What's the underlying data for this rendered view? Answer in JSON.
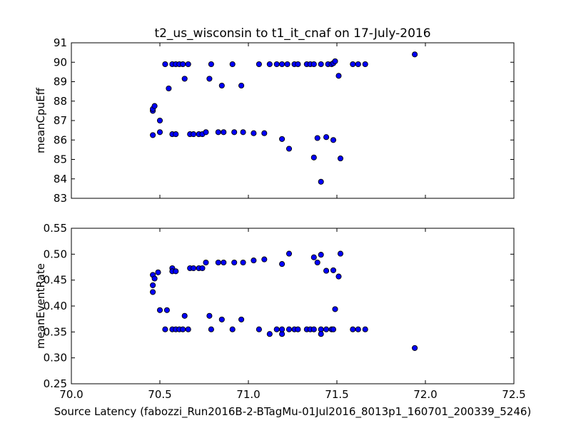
{
  "title": "t2_us_wisconsin to t1_it_cnaf on 17-July-2016",
  "xlabel": "Source Latency (fabozzi_Run2016B-2-BTagMu-01Jul2016_8013p1_160701_200339_5246)",
  "colors": {
    "marker": "#0000ff",
    "marker_edge": "#000000",
    "axes": "#000000",
    "background": "#ffffff"
  },
  "chart_data": [
    {
      "type": "scatter",
      "ylabel": "meanCpuEff",
      "xlim": [
        70.0,
        72.5
      ],
      "ylim": [
        83,
        91
      ],
      "xticks": [],
      "yticks": [
        "83",
        "84",
        "85",
        "86",
        "87",
        "88",
        "89",
        "90",
        "91"
      ],
      "grid": false,
      "points": [
        [
          70.46,
          87.5
        ],
        [
          70.46,
          87.6
        ],
        [
          70.47,
          87.75
        ],
        [
          70.46,
          86.25
        ],
        [
          70.5,
          86.4
        ],
        [
          70.5,
          87.0
        ],
        [
          70.53,
          89.9
        ],
        [
          70.55,
          88.65
        ],
        [
          70.57,
          89.9
        ],
        [
          70.59,
          89.9
        ],
        [
          70.61,
          89.9
        ],
        [
          70.63,
          89.9
        ],
        [
          70.64,
          89.15
        ],
        [
          70.66,
          89.9
        ],
        [
          70.57,
          86.3
        ],
        [
          70.59,
          86.3
        ],
        [
          70.67,
          86.3
        ],
        [
          70.69,
          86.3
        ],
        [
          70.72,
          86.3
        ],
        [
          70.74,
          86.3
        ],
        [
          70.76,
          86.4
        ],
        [
          70.78,
          89.15
        ],
        [
          70.79,
          89.9
        ],
        [
          70.83,
          86.4
        ],
        [
          70.85,
          88.8
        ],
        [
          70.86,
          86.4
        ],
        [
          70.91,
          89.9
        ],
        [
          70.92,
          86.4
        ],
        [
          70.96,
          88.8
        ],
        [
          70.97,
          86.4
        ],
        [
          71.03,
          86.35
        ],
        [
          71.06,
          89.9
        ],
        [
          71.09,
          86.35
        ],
        [
          71.12,
          89.9
        ],
        [
          71.16,
          89.9
        ],
        [
          71.19,
          89.9
        ],
        [
          71.19,
          86.05
        ],
        [
          71.22,
          89.9
        ],
        [
          71.23,
          85.55
        ],
        [
          71.26,
          89.9
        ],
        [
          71.28,
          89.9
        ],
        [
          71.33,
          89.9
        ],
        [
          71.35,
          89.9
        ],
        [
          71.37,
          89.9
        ],
        [
          71.37,
          85.1
        ],
        [
          71.39,
          86.1
        ],
        [
          71.41,
          89.9
        ],
        [
          71.41,
          83.85
        ],
        [
          71.44,
          86.15
        ],
        [
          71.45,
          89.9
        ],
        [
          71.47,
          89.9
        ],
        [
          71.48,
          89.95
        ],
        [
          71.49,
          90.05
        ],
        [
          71.48,
          86.0
        ],
        [
          71.51,
          89.3
        ],
        [
          71.52,
          85.05
        ],
        [
          71.59,
          89.9
        ],
        [
          71.62,
          89.9
        ],
        [
          71.66,
          89.9
        ],
        [
          71.94,
          90.4
        ]
      ]
    },
    {
      "type": "scatter",
      "ylabel": "meanEventRate",
      "xlim": [
        70.0,
        72.5
      ],
      "ylim": [
        0.25,
        0.55
      ],
      "xticks": [
        "70.0",
        "70.5",
        "71.0",
        "71.5",
        "72.0",
        "72.5"
      ],
      "yticks": [
        "0.25",
        "0.30",
        "0.35",
        "0.40",
        "0.45",
        "0.50",
        "0.55"
      ],
      "grid": false,
      "points": [
        [
          70.46,
          0.46
        ],
        [
          70.47,
          0.453
        ],
        [
          70.46,
          0.44
        ],
        [
          70.46,
          0.427
        ],
        [
          70.49,
          0.465
        ],
        [
          70.5,
          0.392
        ],
        [
          70.54,
          0.392
        ],
        [
          70.53,
          0.355
        ],
        [
          70.57,
          0.473
        ],
        [
          70.57,
          0.467
        ],
        [
          70.59,
          0.467
        ],
        [
          70.57,
          0.355
        ],
        [
          70.59,
          0.355
        ],
        [
          70.61,
          0.355
        ],
        [
          70.63,
          0.355
        ],
        [
          70.64,
          0.381
        ],
        [
          70.66,
          0.355
        ],
        [
          70.67,
          0.473
        ],
        [
          70.69,
          0.473
        ],
        [
          70.72,
          0.473
        ],
        [
          70.74,
          0.473
        ],
        [
          70.76,
          0.484
        ],
        [
          70.78,
          0.381
        ],
        [
          70.79,
          0.355
        ],
        [
          70.83,
          0.484
        ],
        [
          70.85,
          0.374
        ],
        [
          70.86,
          0.484
        ],
        [
          70.91,
          0.355
        ],
        [
          70.92,
          0.484
        ],
        [
          70.96,
          0.374
        ],
        [
          70.97,
          0.484
        ],
        [
          71.03,
          0.488
        ],
        [
          71.06,
          0.355
        ],
        [
          71.09,
          0.49
        ],
        [
          71.12,
          0.346
        ],
        [
          71.16,
          0.355
        ],
        [
          71.19,
          0.346
        ],
        [
          71.19,
          0.481
        ],
        [
          71.19,
          0.355
        ],
        [
          71.23,
          0.501
        ],
        [
          71.23,
          0.355
        ],
        [
          71.26,
          0.355
        ],
        [
          71.28,
          0.355
        ],
        [
          71.33,
          0.355
        ],
        [
          71.35,
          0.355
        ],
        [
          71.37,
          0.355
        ],
        [
          71.37,
          0.494
        ],
        [
          71.39,
          0.484
        ],
        [
          71.41,
          0.499
        ],
        [
          71.41,
          0.355
        ],
        [
          71.41,
          0.346
        ],
        [
          71.44,
          0.355
        ],
        [
          71.44,
          0.468
        ],
        [
          71.47,
          0.355
        ],
        [
          71.48,
          0.355
        ],
        [
          71.48,
          0.469
        ],
        [
          71.49,
          0.394
        ],
        [
          71.51,
          0.457
        ],
        [
          71.52,
          0.501
        ],
        [
          71.59,
          0.355
        ],
        [
          71.62,
          0.355
        ],
        [
          71.66,
          0.355
        ],
        [
          71.94,
          0.319
        ]
      ]
    }
  ]
}
